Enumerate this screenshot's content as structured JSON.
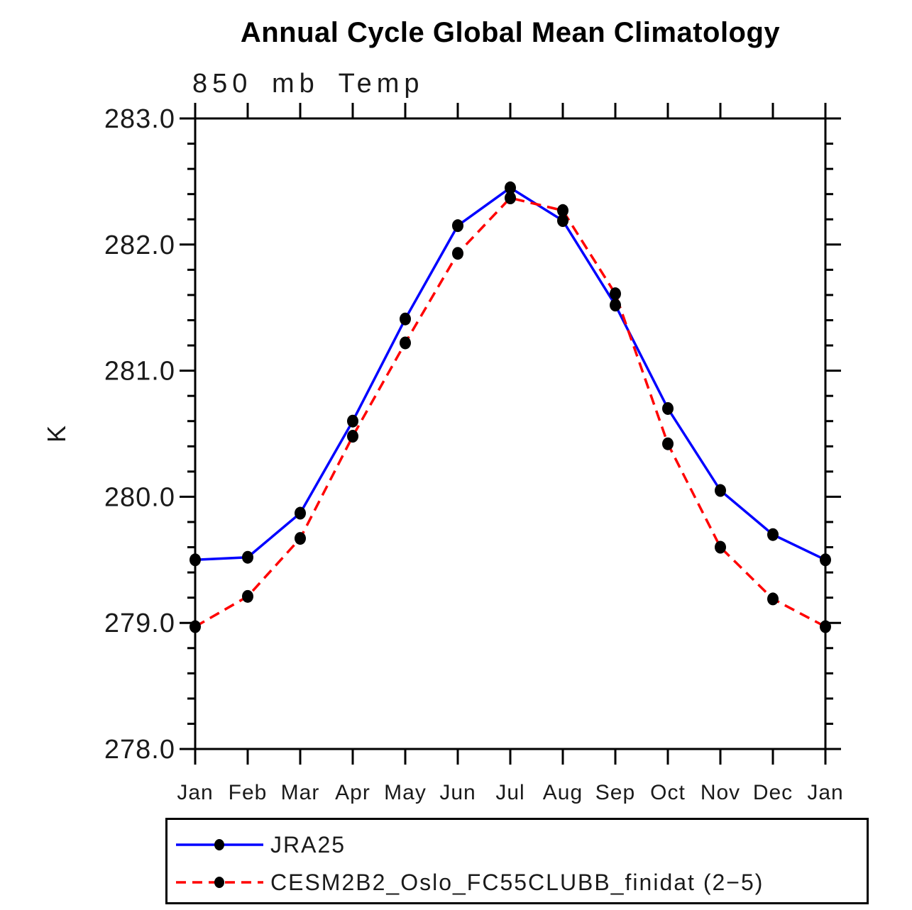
{
  "header": {
    "title": "Annual Cycle Global Mean Climatology",
    "subtitle": "850 mb Temp"
  },
  "chart_data": {
    "type": "line",
    "title": "Annual Cycle Global Mean Climatology",
    "subtitle": "850 mb Temp",
    "xlabel": "",
    "ylabel": "K",
    "categories": [
      "Jan",
      "Feb",
      "Mar",
      "Apr",
      "May",
      "Jun",
      "Jul",
      "Aug",
      "Sep",
      "Oct",
      "Nov",
      "Dec",
      "Jan"
    ],
    "ylim": [
      278.0,
      283.0
    ],
    "y_major_step": 1.0,
    "y_minor_step": 0.2,
    "y_tick_labels": [
      "283.0",
      "282.0",
      "281.0",
      "280.0",
      "279.0",
      "278.0"
    ],
    "grid": false,
    "legend_position": "bottom",
    "frame_color": "#000000",
    "marker_color": "#000000",
    "series": [
      {
        "name": "JRA25",
        "color": "#0000ff",
        "line_style": "solid",
        "marker": "filled-circle",
        "values": [
          279.5,
          279.52,
          279.87,
          280.6,
          281.41,
          282.15,
          282.45,
          282.19,
          281.52,
          280.7,
          280.05,
          279.7,
          279.5
        ]
      },
      {
        "name": "CESM2B2_Oslo_FC55CLUBB_finidat (2−5)",
        "color": "#ff0000",
        "line_style": "dashed",
        "marker": "filled-circle",
        "values": [
          278.97,
          279.21,
          279.67,
          280.48,
          281.22,
          281.93,
          282.37,
          282.27,
          281.61,
          280.42,
          279.6,
          279.19,
          278.97
        ]
      }
    ]
  }
}
